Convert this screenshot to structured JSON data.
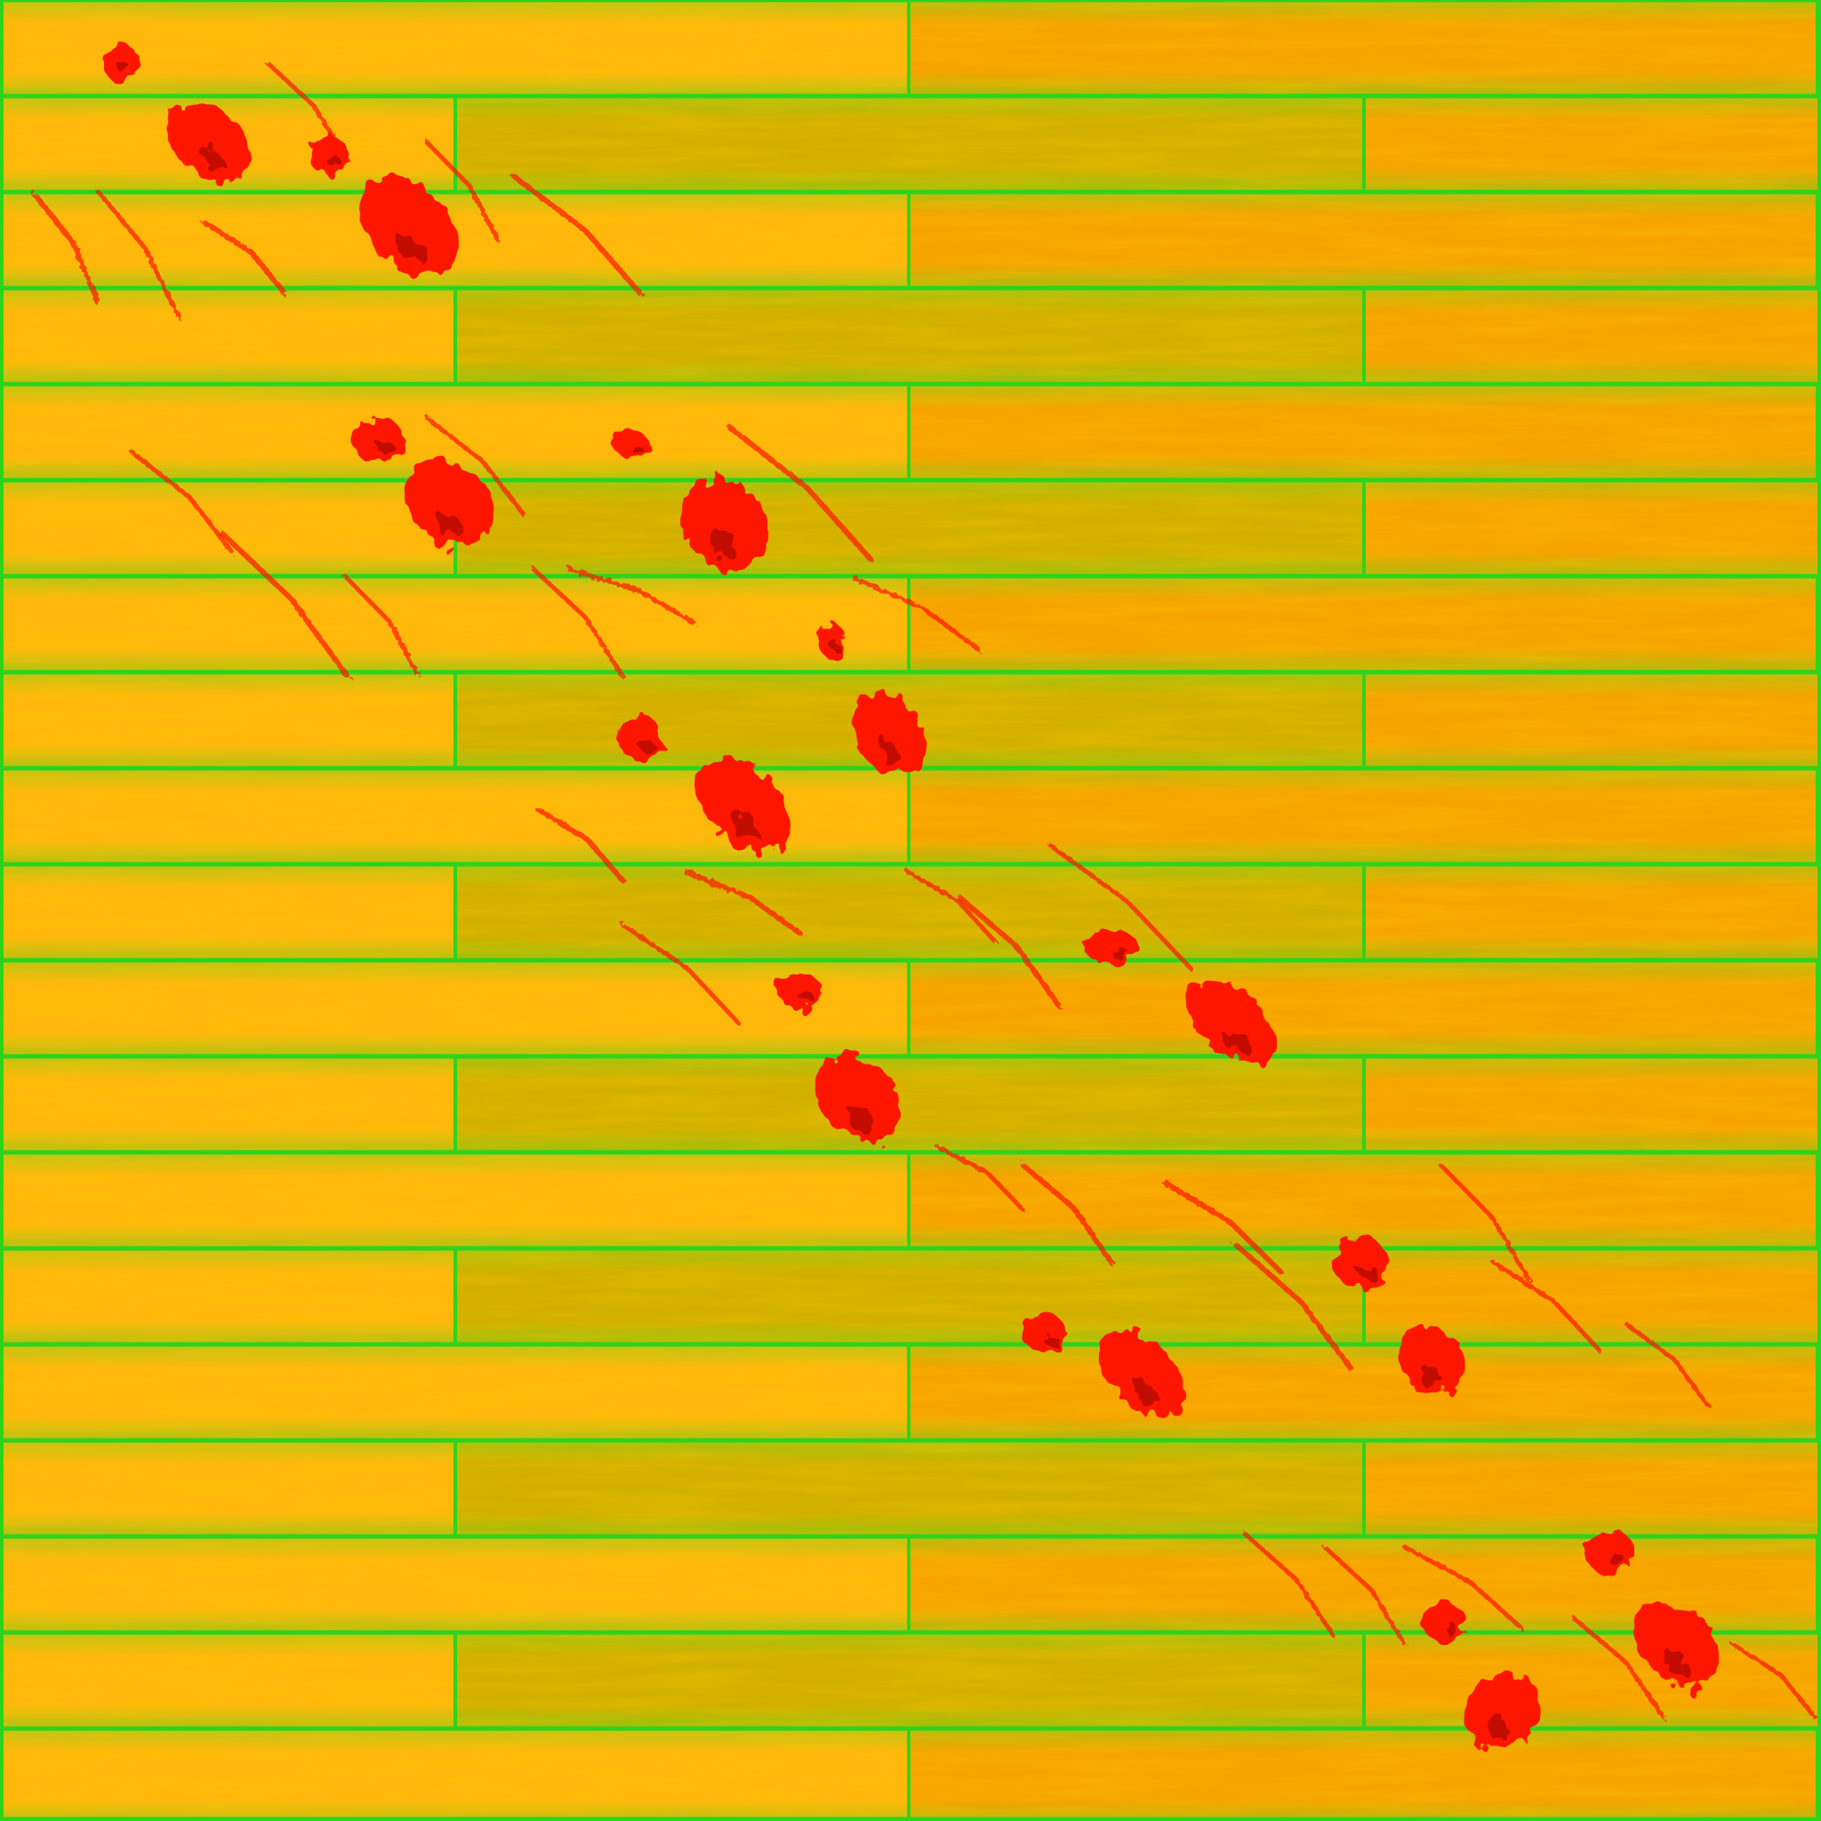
{
  "texture": {
    "kind": "wood-plank-floor",
    "stains": "red-paint-smears"
  },
  "colors": {
    "plank_light": "#ffb70c",
    "plank_mid": "#f7a300",
    "plank_warm": "#ff9a10",
    "plank_olive": "#d2b000",
    "seam": "#2ed41c",
    "seam_glow": "#86e01a",
    "stain": "#ff1200",
    "stain_dark": "#7a0000",
    "grain": "#f08e00"
  }
}
